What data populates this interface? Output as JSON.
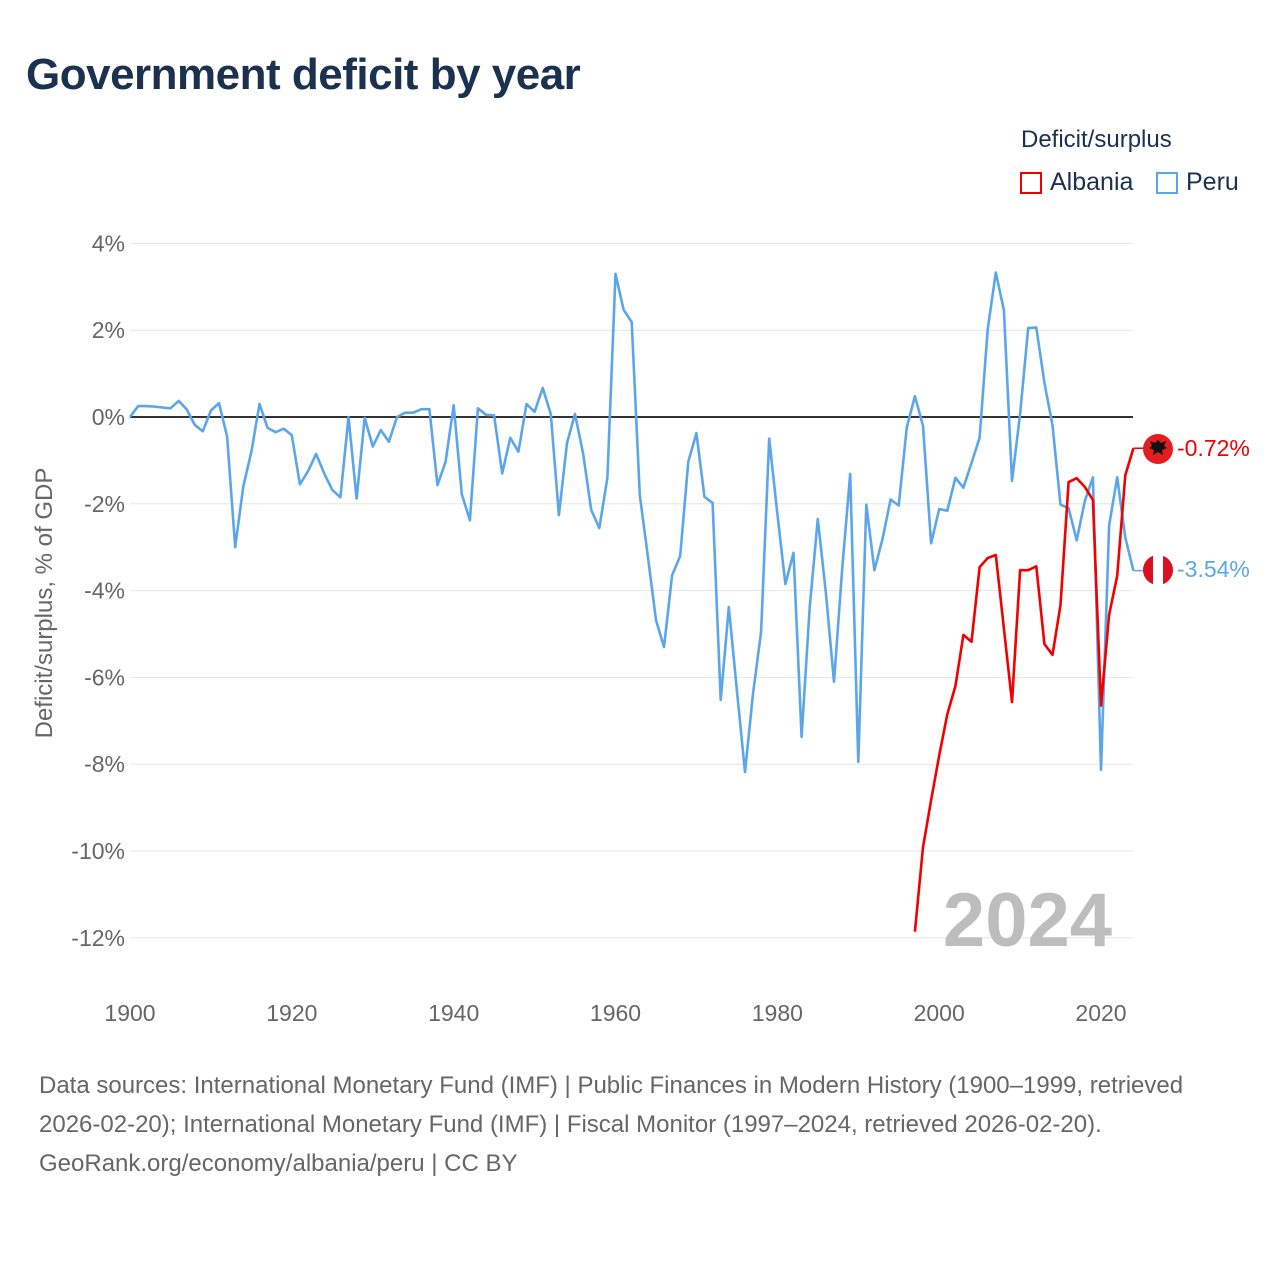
{
  "title": "Government deficit by year",
  "legend": {
    "title": "Deficit/surplus",
    "items": [
      {
        "name": "Albania",
        "color": "#f20000"
      },
      {
        "name": "Peru",
        "color": "#5ba6ea"
      }
    ]
  },
  "footer": {
    "sources": "Data sources: International Monetary Fund (IMF) | Public Finances in Modern History (1900–1999, retrieved 2026-02-20); International Monetary Fund (IMF) | Fiscal Monitor (1997–2024, retrieved 2026-02-20).",
    "credit": "GeoRank.org/economy/albania/peru | CC BY"
  },
  "chart_data": {
    "type": "line",
    "title": "Government deficit by year",
    "xlabel": "",
    "ylabel": "Deficit/surplus, % of GDP",
    "xlim": [
      1900,
      2024
    ],
    "ylim": [
      -13,
      4.3
    ],
    "x_ticks": [
      1900,
      1920,
      1940,
      1960,
      1980,
      2000,
      2020
    ],
    "x_tick_labels": [
      "1900",
      "1920",
      "1940",
      "1960",
      "1980",
      "2000",
      "2020"
    ],
    "y_ticks": [
      4,
      2,
      0,
      -2,
      -4,
      -6,
      -8,
      -10,
      -12
    ],
    "y_tick_labels": [
      "4%",
      "2%",
      "0%",
      "-2%",
      "-4%",
      "-6%",
      "-8%",
      "-10%",
      "-12%"
    ],
    "grid": true,
    "legend_position": "top-right",
    "year_watermark": "2024",
    "series": [
      {
        "name": "Peru",
        "color": "#5ba6ea",
        "start_year": 1900,
        "end_label": "-3.54%",
        "values": [
          0,
          0.25,
          0.25,
          0.24,
          0.22,
          0.2,
          0.37,
          0.18,
          -0.18,
          -0.33,
          0.15,
          0.32,
          -0.45,
          -3.0,
          -1.6,
          -0.8,
          0.3,
          -0.25,
          -0.35,
          -0.27,
          -0.42,
          -1.55,
          -1.25,
          -0.85,
          -1.3,
          -1.68,
          -1.85,
          0,
          -1.88,
          -0.02,
          -0.68,
          -0.3,
          -0.57,
          0,
          0.1,
          0.1,
          0.18,
          0.18,
          -1.57,
          -1.03,
          0.27,
          -1.78,
          -2.38,
          0.2,
          0.05,
          0.04,
          -1.3,
          -0.48,
          -0.8,
          0.3,
          0.12,
          0.67,
          0.07,
          -2.26,
          -0.6,
          0.07,
          -0.84,
          -2.14,
          -2.56,
          -1.4,
          3.3,
          2.47,
          2.19,
          -1.8,
          -3.22,
          -4.68,
          -5.3,
          -3.65,
          -3.2,
          -1.03,
          -0.37,
          -1.84,
          -1.98,
          -6.52,
          -4.38,
          -6.3,
          -8.18,
          -6.36,
          -4.95,
          -0.5,
          -2.22,
          -3.85,
          -3.13,
          -7.37,
          -4.38,
          -2.35,
          -4.06,
          -6.1,
          -3.53,
          -1.31,
          -7.95,
          -2.02,
          -3.53,
          -2.81,
          -1.9,
          -2.04,
          -0.24,
          0.48,
          -0.2,
          -2.91,
          -2.12,
          -2.16,
          -1.4,
          -1.63,
          -1.06,
          -0.48,
          2.02,
          3.33,
          2.46,
          -1.47,
          0.07,
          2.05,
          2.06,
          0.79,
          -0.19,
          -2.02,
          -2.1,
          -2.84,
          -1.94,
          -1.39,
          -8.13,
          -2.5,
          -1.39,
          -2.78,
          -3.54
        ]
      },
      {
        "name": "Albania",
        "color": "#f20000",
        "start_year": 1997,
        "end_label": "-0.72%",
        "values": [
          -11.86,
          -9.91,
          -8.83,
          -7.8,
          -6.85,
          -6.2,
          -5.02,
          -5.18,
          -3.46,
          -3.25,
          -3.18,
          -4.87,
          -6.57,
          -3.53,
          -3.53,
          -3.44,
          -5.23,
          -5.48,
          -4.33,
          -1.5,
          -1.41,
          -1.61,
          -1.91,
          -6.65,
          -4.56,
          -3.66,
          -1.34,
          -0.72
        ]
      }
    ]
  }
}
